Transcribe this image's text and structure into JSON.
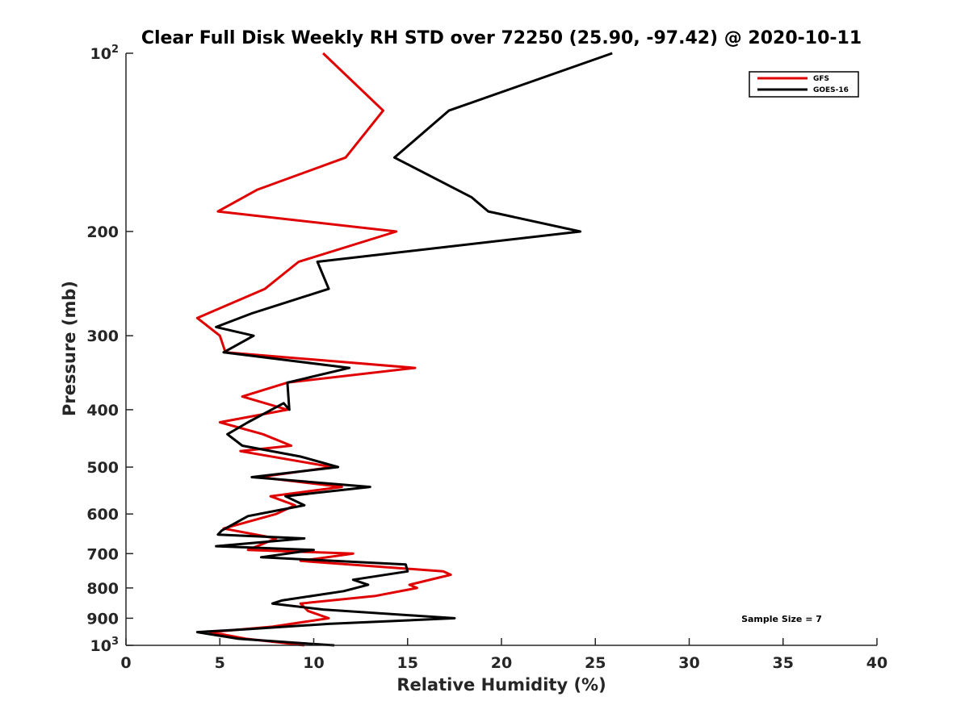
{
  "chart_data": {
    "type": "line",
    "title": "Clear Full Disk Weekly RH STD over 72250 (25.90, -97.42) @ 2020-10-11",
    "xlabel": "Relative Humidity (%)",
    "ylabel": "Pressure (mb)",
    "xlim": [
      0,
      40
    ],
    "ylim": [
      100,
      1000
    ],
    "y_scale": "log",
    "y_reversed": true,
    "x_ticks": [
      "0",
      "5",
      "10",
      "15",
      "20",
      "25",
      "30",
      "35",
      "40"
    ],
    "y_ticks": [
      {
        "value": 100,
        "base": "10",
        "exp": "2"
      },
      {
        "value": 200,
        "label": "200"
      },
      {
        "value": 300,
        "label": "300"
      },
      {
        "value": 400,
        "label": "400"
      },
      {
        "value": 500,
        "label": "500"
      },
      {
        "value": 600,
        "label": "600"
      },
      {
        "value": 700,
        "label": "700"
      },
      {
        "value": 800,
        "label": "800"
      },
      {
        "value": 900,
        "label": "900"
      },
      {
        "value": 1000,
        "base": "10",
        "exp": "3"
      }
    ],
    "grid": false,
    "legend_position": "top-right",
    "series": [
      {
        "name": "GFS",
        "color": "#e00000",
        "points": [
          [
            10.5,
            100
          ],
          [
            13.7,
            125
          ],
          [
            11.7,
            150
          ],
          [
            7.0,
            170
          ],
          [
            4.9,
            185
          ],
          [
            14.4,
            200
          ],
          [
            9.2,
            225
          ],
          [
            7.4,
            250
          ],
          [
            3.8,
            280
          ],
          [
            5.0,
            300
          ],
          [
            5.3,
            320
          ],
          [
            15.4,
            340
          ],
          [
            8.6,
            360
          ],
          [
            6.2,
            380
          ],
          [
            8.6,
            400
          ],
          [
            5.0,
            420
          ],
          [
            7.3,
            440
          ],
          [
            8.8,
            460
          ],
          [
            6.1,
            470
          ],
          [
            11.0,
            500
          ],
          [
            7.1,
            520
          ],
          [
            11.5,
            540
          ],
          [
            7.7,
            560
          ],
          [
            9.0,
            580
          ],
          [
            8.0,
            600
          ],
          [
            5.2,
            635
          ],
          [
            8.0,
            660
          ],
          [
            6.5,
            690
          ],
          [
            12.1,
            700
          ],
          [
            9.3,
            720
          ],
          [
            16.9,
            750
          ],
          [
            17.3,
            760
          ],
          [
            15.1,
            790
          ],
          [
            15.5,
            800
          ],
          [
            13.3,
            825
          ],
          [
            9.3,
            850
          ],
          [
            9.7,
            875
          ],
          [
            10.8,
            900
          ],
          [
            7.8,
            930
          ],
          [
            4.5,
            950
          ],
          [
            6.4,
            975
          ],
          [
            8.3,
            990
          ],
          [
            9.5,
            1000
          ]
        ]
      },
      {
        "name": "GOES-16",
        "color": "#000000",
        "points": [
          [
            25.9,
            100
          ],
          [
            17.2,
            125
          ],
          [
            14.3,
            150
          ],
          [
            18.4,
            175
          ],
          [
            19.3,
            185
          ],
          [
            24.2,
            200
          ],
          [
            10.2,
            225
          ],
          [
            10.8,
            250
          ],
          [
            6.7,
            275
          ],
          [
            4.8,
            290
          ],
          [
            6.8,
            300
          ],
          [
            5.2,
            320
          ],
          [
            11.9,
            340
          ],
          [
            8.6,
            360
          ],
          [
            8.7,
            400
          ],
          [
            8.4,
            390
          ],
          [
            6.5,
            420
          ],
          [
            5.4,
            440
          ],
          [
            6.2,
            460
          ],
          [
            9.3,
            480
          ],
          [
            11.3,
            500
          ],
          [
            6.7,
            520
          ],
          [
            13.0,
            540
          ],
          [
            8.5,
            560
          ],
          [
            9.5,
            580
          ],
          [
            6.5,
            605
          ],
          [
            5.1,
            640
          ],
          [
            4.9,
            650
          ],
          [
            9.5,
            660
          ],
          [
            4.8,
            680
          ],
          [
            10.0,
            690
          ],
          [
            7.2,
            710
          ],
          [
            14.9,
            730
          ],
          [
            15.0,
            750
          ],
          [
            12.1,
            775
          ],
          [
            12.9,
            790
          ],
          [
            11.6,
            810
          ],
          [
            8.3,
            840
          ],
          [
            7.8,
            850
          ],
          [
            10.5,
            870
          ],
          [
            17.5,
            900
          ],
          [
            10.8,
            920
          ],
          [
            6.3,
            940
          ],
          [
            3.8,
            950
          ],
          [
            6.0,
            975
          ],
          [
            9.0,
            990
          ],
          [
            11.1,
            1000
          ]
        ]
      }
    ],
    "annotations": [
      "Sample Size = 7"
    ]
  }
}
